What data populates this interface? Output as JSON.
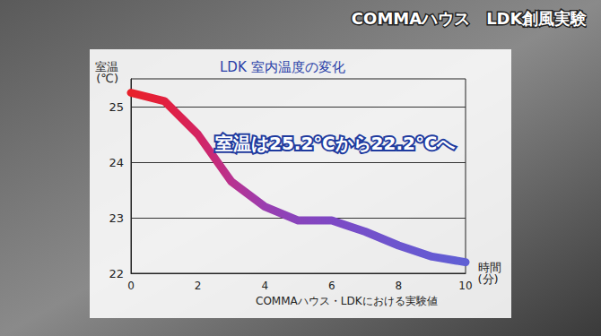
{
  "chart_data": {
    "type": "line",
    "title": "LDK 室内温度の変化",
    "caption": "COMMAハウス　LDK創風実験",
    "note": "COMMAハウス・LDKにおける実験値",
    "annotations": [
      "室温は25.2℃から22.2℃へ"
    ],
    "x_label": "時間\n(分)",
    "y_label": "室温\n(℃)",
    "x": [
      0,
      1,
      2,
      3,
      4,
      5,
      6,
      7,
      8,
      9,
      10
    ],
    "values": [
      25.25,
      25.1,
      24.5,
      23.65,
      23.2,
      22.95,
      22.95,
      22.75,
      22.5,
      22.3,
      22.2
    ],
    "colors": [
      "#e8202a",
      "#e2203e",
      "#d42462",
      "#b83290",
      "#9a3eb0",
      "#8844bc",
      "#7e48c4",
      "#7450ca",
      "#6c56ce",
      "#665ad2",
      "#6060d4"
    ],
    "xlim": [
      0,
      10
    ],
    "xticks": [
      0,
      2,
      4,
      6,
      8,
      10
    ],
    "ylim": [
      22,
      25.5
    ],
    "yticks": [
      22,
      23,
      24,
      25
    ],
    "grid": true
  }
}
